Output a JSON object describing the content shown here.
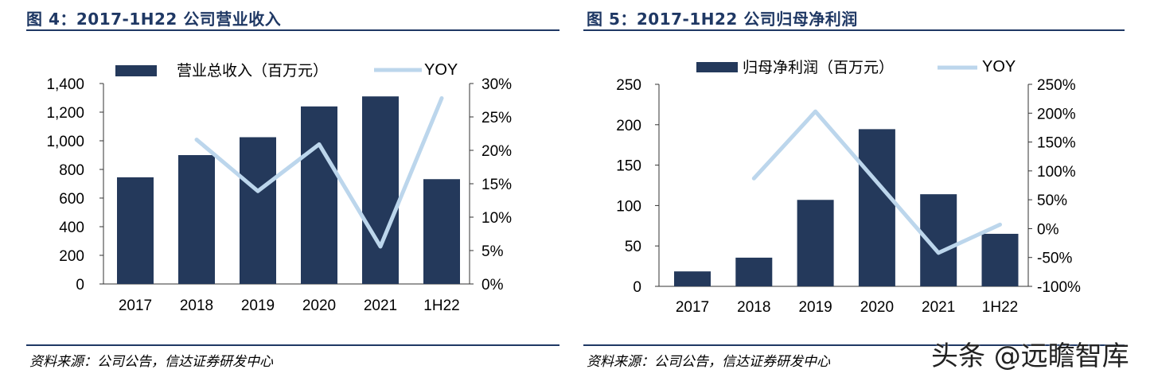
{
  "chart_data": [
    {
      "type": "bar",
      "title": "图 4：2017-1H22 公司营业收入",
      "categories": [
        "2017",
        "2018",
        "2019",
        "2020",
        "2021",
        "1H22"
      ],
      "series": [
        {
          "name": "营业总收入（百万元）",
          "type": "bar",
          "axis": "left",
          "color": "#24395b",
          "values": [
            745,
            900,
            1025,
            1240,
            1310,
            732
          ]
        },
        {
          "name": "YOY",
          "type": "line",
          "axis": "right",
          "color": "#bcd6ec",
          "values": [
            null,
            21.6,
            13.9,
            20.9,
            5.6,
            27.8
          ]
        }
      ],
      "y_left": {
        "range": [
          0,
          1400
        ],
        "ticks": [
          "0",
          "200",
          "400",
          "600",
          "800",
          "1,000",
          "1,200",
          "1,400"
        ]
      },
      "y_right": {
        "range": [
          0,
          30
        ],
        "ticks": [
          "0%",
          "5%",
          "10%",
          "15%",
          "20%",
          "25%",
          "30%"
        ]
      },
      "source": "资料来源：公司公告，信达证券研发中心"
    },
    {
      "type": "bar",
      "title": "图 5：2017-1H22 公司归母净利润",
      "categories": [
        "2017",
        "2018",
        "2019",
        "2020",
        "2021",
        "1H22"
      ],
      "series": [
        {
          "name": "归母净利润（百万元）",
          "type": "bar",
          "axis": "left",
          "color": "#24395b",
          "values": [
            18.5,
            35.5,
            107,
            194.5,
            114,
            65
          ]
        },
        {
          "name": "YOY",
          "type": "line",
          "axis": "right",
          "color": "#bcd6ec",
          "values": [
            null,
            87,
            203,
            null,
            -42,
            7
          ]
        }
      ],
      "y_left": {
        "range": [
          0,
          250
        ],
        "ticks": [
          "0",
          "50",
          "100",
          "150",
          "200",
          "250"
        ]
      },
      "y_right": {
        "range": [
          -100,
          250
        ],
        "ticks": [
          "-100%",
          "-50%",
          "0%",
          "50%",
          "100%",
          "150%",
          "200%",
          "250%"
        ]
      },
      "source": "资料来源：公司公告，信达证券研发中心"
    }
  ],
  "watermark": "头条 @远瞻智库"
}
